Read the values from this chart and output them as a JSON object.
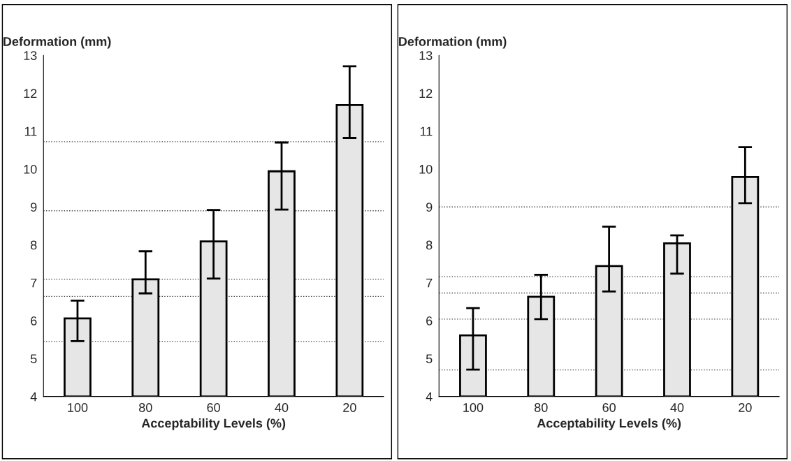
{
  "chart_data": [
    {
      "type": "bar",
      "ylabel": "Deformation (mm)",
      "xlabel": "Acceptability Levels (%)",
      "categories": [
        "100",
        "80",
        "60",
        "40",
        "20"
      ],
      "values": [
        6.06,
        7.09,
        8.09,
        9.94,
        11.69
      ],
      "color": "#e6e6e6",
      "errors": [
        [
          5.46,
          6.53
        ],
        [
          6.72,
          7.83
        ],
        [
          7.11,
          8.92
        ],
        [
          8.93,
          10.7
        ],
        [
          10.82,
          12.71
        ]
      ],
      "ylim": [
        4,
        13
      ],
      "yticks": [
        4,
        5,
        6,
        7,
        8,
        9,
        10,
        11,
        12,
        13
      ],
      "grid": false,
      "ref_lines": [
        {
          "axis": "y",
          "value": 10.72,
          "line_style": "dotted"
        },
        {
          "axis": "y",
          "value": 8.9,
          "line_style": "dotted"
        },
        {
          "axis": "y",
          "value": 7.09,
          "line_style": "dotted"
        },
        {
          "axis": "y",
          "value": 6.64,
          "line_style": "dotted"
        },
        {
          "axis": "y",
          "value": 5.45,
          "line_style": "dotted"
        }
      ]
    },
    {
      "type": "bar",
      "ylabel": "Deformation (mm)",
      "xlabel": "Acceptability Levels (%)",
      "categories": [
        "100",
        "80",
        "60",
        "40",
        "20"
      ],
      "values": [
        5.61,
        6.63,
        7.44,
        8.04,
        9.79
      ],
      "color": "#e6e6e6",
      "errors": [
        [
          4.71,
          6.33
        ],
        [
          6.04,
          7.21
        ],
        [
          6.77,
          8.48
        ],
        [
          7.24,
          8.25
        ],
        [
          9.1,
          10.58
        ]
      ],
      "ylim": [
        4,
        13
      ],
      "yticks": [
        4,
        5,
        6,
        7,
        8,
        9,
        10,
        11,
        12,
        13
      ],
      "grid": false,
      "ref_lines": [
        {
          "axis": "y",
          "value": 9.0,
          "line_style": "dotted"
        },
        {
          "axis": "y",
          "value": 7.16,
          "line_style": "dotted"
        },
        {
          "axis": "y",
          "value": 6.73,
          "line_style": "dotted"
        },
        {
          "axis": "y",
          "value": 6.04,
          "line_style": "dotted"
        },
        {
          "axis": "y",
          "value": 4.7,
          "line_style": "dotted"
        }
      ]
    }
  ]
}
